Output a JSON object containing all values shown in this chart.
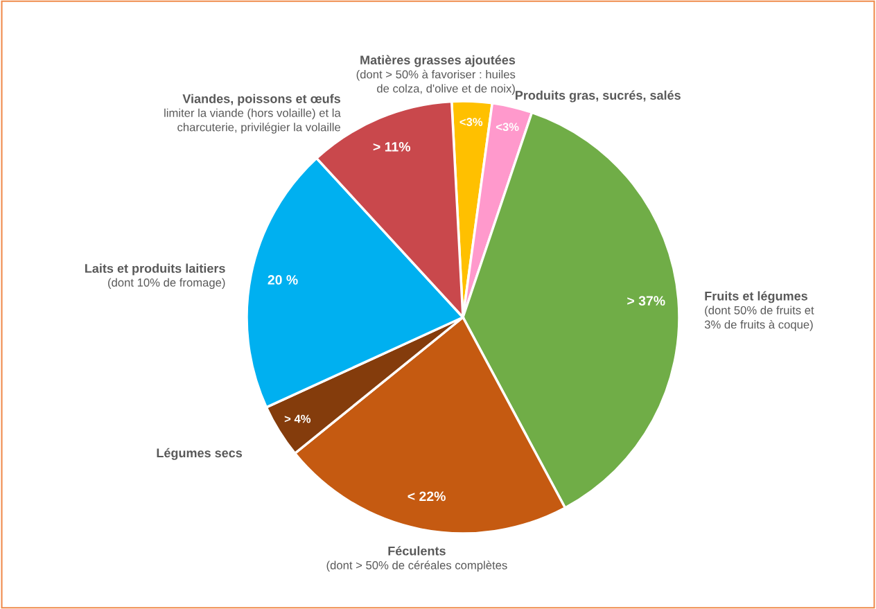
{
  "chart_data": {
    "type": "pie",
    "categories": [
      "Matières grasses ajoutées",
      "Produits gras, sucrés, salés",
      "Fruits et légumes",
      "Féculents",
      "Légumes secs",
      "Laits et produits laitiers",
      "Viandes, poissons et œufs"
    ],
    "values": [
      3,
      3,
      37,
      22,
      4,
      20,
      11
    ],
    "colors": [
      "#ffc000",
      "#ff99cc",
      "#70ad47",
      "#c55a11",
      "#843c0c",
      "#00b0f0",
      "#c9484c"
    ],
    "value_labels": [
      "<3%",
      "<3%",
      "> 37%",
      "< 22%",
      "> 4%",
      "20 %",
      "> 11%"
    ],
    "annotations": [
      "(dont > 50% à favoriser : huiles\nde colza, d'olive et de noix)",
      null,
      "(dont 50% de fruits et\n3% de fruits à coque)",
      "(dont > 50% de céréales complètes",
      null,
      "(dont 10% de fromage)",
      "limiter la viande (hors volaille) et la\ncharcuterie, privilégier la volaille"
    ]
  }
}
